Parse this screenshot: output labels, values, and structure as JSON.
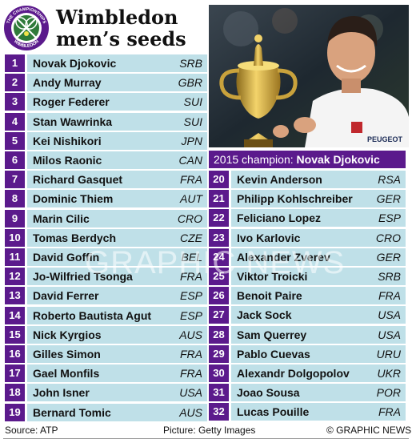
{
  "header": {
    "title_line1": "Wimbledon",
    "title_line2": "men’s seeds",
    "logo_text_top": "THE CHAMPIONSHIPS",
    "logo_text_bottom": "WIMBLEDON"
  },
  "photo": {
    "shirt_text": "PEUGEOT"
  },
  "champion": {
    "label": "2015 champion: ",
    "name": "Novak Djokovic"
  },
  "seeds_left": [
    {
      "seed": "1",
      "name": "Novak Djokovic",
      "country": "SRB"
    },
    {
      "seed": "2",
      "name": "Andy Murray",
      "country": "GBR"
    },
    {
      "seed": "3",
      "name": "Roger Federer",
      "country": "SUI"
    },
    {
      "seed": "4",
      "name": "Stan Wawrinka",
      "country": "SUI"
    },
    {
      "seed": "5",
      "name": "Kei Nishikori",
      "country": "JPN"
    },
    {
      "seed": "6",
      "name": "Milos Raonic",
      "country": "CAN"
    },
    {
      "seed": "7",
      "name": "Richard Gasquet",
      "country": "FRA"
    },
    {
      "seed": "8",
      "name": "Dominic Thiem",
      "country": "AUT"
    },
    {
      "seed": "9",
      "name": "Marin Cilic",
      "country": "CRO"
    },
    {
      "seed": "10",
      "name": "Tomas Berdych",
      "country": "CZE"
    },
    {
      "seed": "11",
      "name": "David Goffin",
      "country": "BEL"
    },
    {
      "seed": "12",
      "name": "Jo-Wilfried Tsonga",
      "country": "FRA"
    },
    {
      "seed": "13",
      "name": "David Ferrer",
      "country": "ESP"
    },
    {
      "seed": "14",
      "name": "Roberto Bautista Agut",
      "country": "ESP"
    },
    {
      "seed": "15",
      "name": "Nick Kyrgios",
      "country": "AUS"
    },
    {
      "seed": "16",
      "name": "Gilles Simon",
      "country": "FRA"
    },
    {
      "seed": "17",
      "name": "Gael Monfils",
      "country": "FRA"
    },
    {
      "seed": "18",
      "name": "John Isner",
      "country": "USA"
    },
    {
      "seed": "19",
      "name": "Bernard Tomic",
      "country": "AUS"
    }
  ],
  "seeds_right": [
    {
      "seed": "20",
      "name": "Kevin Anderson",
      "country": "RSA"
    },
    {
      "seed": "21",
      "name": "Philipp Kohlschreiber",
      "country": "GER"
    },
    {
      "seed": "22",
      "name": "Feliciano Lopez",
      "country": "ESP"
    },
    {
      "seed": "23",
      "name": "Ivo Karlovic",
      "country": "CRO"
    },
    {
      "seed": "24",
      "name": "Alexander Zverev",
      "country": "GER"
    },
    {
      "seed": "25",
      "name": "Viktor Troicki",
      "country": "SRB"
    },
    {
      "seed": "26",
      "name": "Benoit Paire",
      "country": "FRA"
    },
    {
      "seed": "27",
      "name": "Jack Sock",
      "country": "USA"
    },
    {
      "seed": "28",
      "name": "Sam Querrey",
      "country": "USA"
    },
    {
      "seed": "29",
      "name": "Pablo Cuevas",
      "country": "URU"
    },
    {
      "seed": "30",
      "name": "Alexandr Dolgopolov",
      "country": "UKR"
    },
    {
      "seed": "31",
      "name": "Joao Sousa",
      "country": "POR"
    },
    {
      "seed": "32",
      "name": "Lucas Pouille",
      "country": "FRA"
    }
  ],
  "footer": {
    "source": "Source: ATP",
    "picture": "Picture: Getty Images",
    "credit": "© GRAPHIC NEWS"
  },
  "watermark": {
    "text": "GRAPHIC NEWS"
  },
  "colors": {
    "seed_box": "#5b1a8c",
    "row_bar": "#bfe0e8",
    "champion_bar": "#5b1a8c"
  }
}
